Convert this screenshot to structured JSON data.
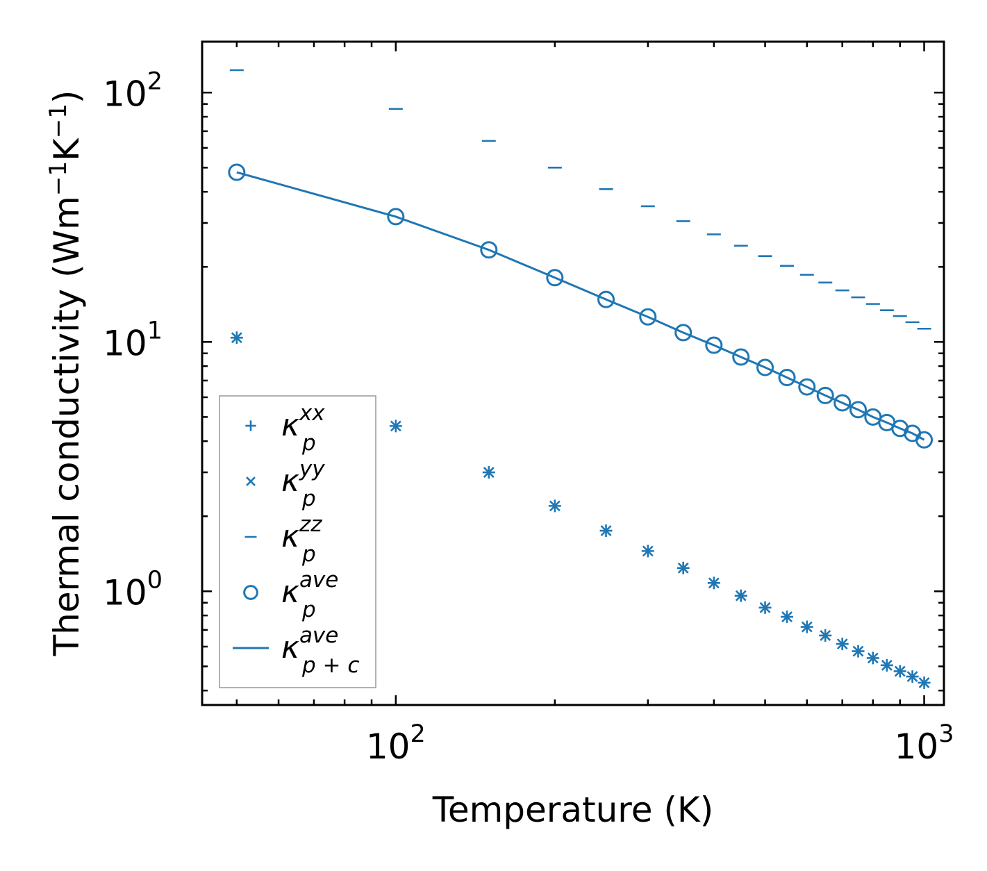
{
  "chart_data": {
    "type": "scatter",
    "scale": {
      "x": "log",
      "y": "log"
    },
    "xlabel": "Temperature (K)",
    "ylabel": "Thermal conductivity (Wm",
    "ylabel_sup1": "−1",
    "ylabel_mid": "K",
    "ylabel_sup2": "−1",
    "ylabel_end": ")",
    "xlim": [
      43,
      1090
    ],
    "ylim": [
      0.35,
      160
    ],
    "x_ticks": [
      {
        "value": 100,
        "base": "10",
        "exp": "2"
      },
      {
        "value": 1000,
        "base": "10",
        "exp": "3"
      }
    ],
    "y_ticks": [
      {
        "value": 1,
        "base": "10",
        "exp": "0"
      },
      {
        "value": 10,
        "base": "10",
        "exp": "1"
      },
      {
        "value": 100,
        "base": "10",
        "exp": "2"
      }
    ],
    "color": "#1f77b4",
    "x": [
      50,
      100,
      150,
      200,
      250,
      300,
      350,
      400,
      450,
      500,
      550,
      600,
      650,
      700,
      750,
      800,
      850,
      900,
      950,
      1000
    ],
    "series": [
      {
        "name": "kappa_p^xx",
        "marker": "plus",
        "values": [
          10.4,
          4.6,
          3.0,
          2.2,
          1.75,
          1.45,
          1.24,
          1.08,
          0.96,
          0.86,
          0.79,
          0.72,
          0.665,
          0.615,
          0.575,
          0.54,
          0.505,
          0.478,
          0.455,
          0.43
        ]
      },
      {
        "name": "kappa_p^yy",
        "marker": "x",
        "values": [
          10.4,
          4.6,
          3.0,
          2.2,
          1.75,
          1.45,
          1.24,
          1.08,
          0.96,
          0.86,
          0.79,
          0.72,
          0.665,
          0.615,
          0.575,
          0.54,
          0.505,
          0.478,
          0.455,
          0.43
        ]
      },
      {
        "name": "kappa_p^zz",
        "marker": "hline",
        "values": [
          123,
          86,
          64,
          50,
          41,
          35,
          30.5,
          27,
          24.3,
          22.1,
          20.2,
          18.6,
          17.3,
          16.1,
          15.1,
          14.2,
          13.4,
          12.7,
          12.0,
          11.3
        ]
      },
      {
        "name": "kappa_p^ave",
        "marker": "circle",
        "values": [
          47.9,
          31.8,
          23.4,
          18.1,
          14.8,
          12.6,
          10.9,
          9.7,
          8.7,
          7.9,
          7.2,
          6.6,
          6.1,
          5.7,
          5.35,
          5.0,
          4.75,
          4.5,
          4.3,
          4.05
        ]
      },
      {
        "name": "kappa_p+c^ave",
        "marker": "line",
        "values": [
          47.9,
          31.8,
          23.4,
          18.1,
          14.8,
          12.6,
          10.9,
          9.7,
          8.7,
          7.9,
          7.2,
          6.6,
          6.1,
          5.7,
          5.35,
          5.0,
          4.75,
          4.5,
          4.3,
          4.05
        ]
      }
    ],
    "legend": {
      "position": "lower-left",
      "entries": [
        {
          "marker": "plus",
          "sym": "κ",
          "sub": "p",
          "sup": "xx"
        },
        {
          "marker": "x",
          "sym": "κ",
          "sub": "p",
          "sup": "yy"
        },
        {
          "marker": "hline",
          "sym": "κ",
          "sub": "p",
          "sup": "zz"
        },
        {
          "marker": "circle",
          "sym": "κ",
          "sub": "p",
          "sup": "ave"
        },
        {
          "marker": "line",
          "sym": "κ",
          "sub": "p + c",
          "sup": "ave"
        }
      ]
    }
  }
}
